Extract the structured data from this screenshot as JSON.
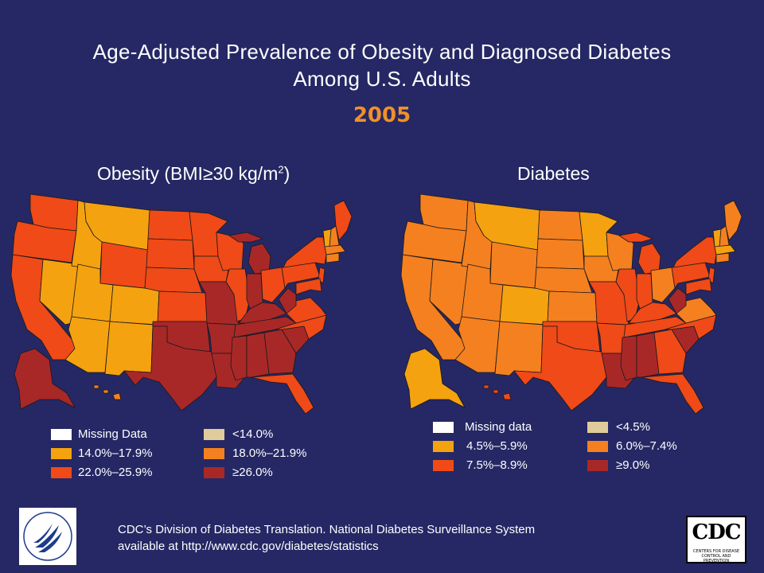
{
  "title": {
    "line1": "Age-Adjusted Prevalence of Obesity and Diagnosed Diabetes",
    "line2": "Among U.S. Adults",
    "year": "2005"
  },
  "obesity": {
    "title_main": "Obesity (BMI≥30 kg/m",
    "title_sup": "2",
    "title_end": ")",
    "legend": [
      {
        "label": "Missing Data",
        "color": "#ffffff"
      },
      {
        "label": "<14.0%",
        "color": "#e0cc9a"
      },
      {
        "label": "14.0%–17.9%",
        "color": "#f5a210"
      },
      {
        "label": "18.0%–21.9%",
        "color": "#f58020"
      },
      {
        "label": "22.0%–25.9%",
        "color": "#ef4a18"
      },
      {
        "label": "≥26.0%",
        "color": "#a82828"
      }
    ]
  },
  "diabetes": {
    "title": "Diabetes",
    "legend": [
      {
        "label": "Missing data",
        "color": "#ffffff"
      },
      {
        "label": "<4.5%",
        "color": "#e0cc9a"
      },
      {
        "label": "4.5%–5.9%",
        "color": "#f5a210"
      },
      {
        "label": "6.0%–7.4%",
        "color": "#f58020"
      },
      {
        "label": "7.5%–8.9%",
        "color": "#ef4a18"
      },
      {
        "label": "≥9.0%",
        "color": "#a82828"
      }
    ]
  },
  "footer": {
    "line1": "CDC’s Division of Diabetes Translation. National Diabetes Surveillance System",
    "line2": "available at http://www.cdc.gov/diabetes/statistics"
  },
  "logos": {
    "cdc": "CDC",
    "cdc_sub": "CENTERS FOR DISEASE CONTROL AND PREVENTION"
  }
}
